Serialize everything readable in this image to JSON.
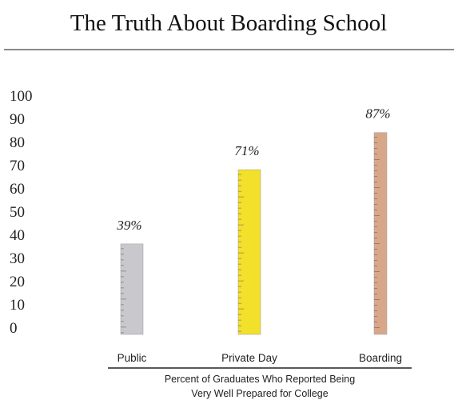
{
  "chart_data": {
    "type": "bar",
    "title": "The Truth About Boarding School",
    "categories": [
      "Public",
      "Private Day",
      "Boarding"
    ],
    "values": [
      39,
      71,
      87
    ],
    "value_labels": [
      "39%",
      "71%",
      "87%"
    ],
    "colors": [
      "#c9c9cd",
      "#f3e02a",
      "#d8a78a"
    ],
    "x_label": [
      "Percent of Graduates Who Reported Being",
      "Very Well Prepared for College"
    ],
    "ylim": [
      0,
      100
    ],
    "yticks": [
      0,
      10,
      20,
      30,
      40,
      50,
      60,
      70,
      80,
      90,
      100
    ]
  }
}
